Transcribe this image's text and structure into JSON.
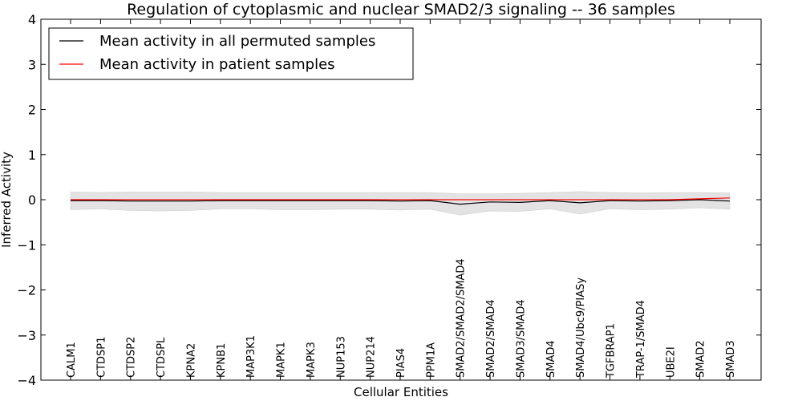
{
  "chart_data": {
    "type": "line",
    "title": "Regulation of cytoplasmic and nuclear SMAD2/3 signaling -- 36 samples",
    "xlabel": "Cellular Entities",
    "ylabel": "Inferred Activity",
    "ylim": [
      -4,
      4
    ],
    "yticks": [
      4,
      3,
      2,
      1,
      0,
      -1,
      -2,
      -3,
      -4
    ],
    "ytick_labels": [
      "4",
      "3",
      "2",
      "1",
      "0",
      "−1",
      "−2",
      "−3",
      "−4"
    ],
    "grid": false,
    "legend_position": "top-left",
    "categories": [
      "CALM1",
      "CTDSP1",
      "CTDSP2",
      "CTDSPL",
      "KPNA2",
      "KPNB1",
      "MAP3K1",
      "MAPK1",
      "MAPK3",
      "NUP153",
      "NUP214",
      "PIAS4",
      "PPM1A",
      "SMAD2/SMAD2/SMAD4",
      "SMAD2/SMAD4",
      "SMAD3/SMAD4",
      "SMAD4",
      "SMAD4/Ubc9/PIASy",
      "TGFBRAP1",
      "TRAP-1/SMAD4",
      "UBE2I",
      "SMAD2",
      "SMAD3"
    ],
    "series": [
      {
        "name": "Mean activity in all permuted samples",
        "color": "#000000",
        "values": [
          -0.02,
          -0.02,
          -0.03,
          -0.03,
          -0.03,
          -0.02,
          -0.02,
          -0.02,
          -0.02,
          -0.02,
          -0.02,
          -0.03,
          -0.02,
          -0.1,
          -0.05,
          -0.06,
          -0.02,
          -0.07,
          -0.02,
          -0.03,
          -0.02,
          0.0,
          -0.03
        ]
      },
      {
        "name": "Mean activity in patient samples",
        "color": "#ff0000",
        "values": [
          0.0,
          0.0,
          0.0,
          0.0,
          0.0,
          0.0,
          0.0,
          0.0,
          0.0,
          0.0,
          0.0,
          0.0,
          0.0,
          0.0,
          0.0,
          0.0,
          0.0,
          0.0,
          0.0,
          0.0,
          0.0,
          0.02,
          0.04
        ]
      }
    ],
    "band": {
      "color": "#e3e3e3",
      "upper": [
        0.17,
        0.16,
        0.17,
        0.17,
        0.17,
        0.16,
        0.16,
        0.16,
        0.16,
        0.16,
        0.16,
        0.16,
        0.16,
        0.13,
        0.13,
        0.14,
        0.16,
        0.18,
        0.16,
        0.15,
        0.16,
        0.16,
        0.15
      ],
      "lower": [
        -0.22,
        -0.2,
        -0.24,
        -0.25,
        -0.24,
        -0.2,
        -0.2,
        -0.22,
        -0.22,
        -0.21,
        -0.21,
        -0.23,
        -0.21,
        -0.34,
        -0.25,
        -0.26,
        -0.2,
        -0.32,
        -0.2,
        -0.22,
        -0.21,
        -0.18,
        -0.21
      ]
    }
  }
}
